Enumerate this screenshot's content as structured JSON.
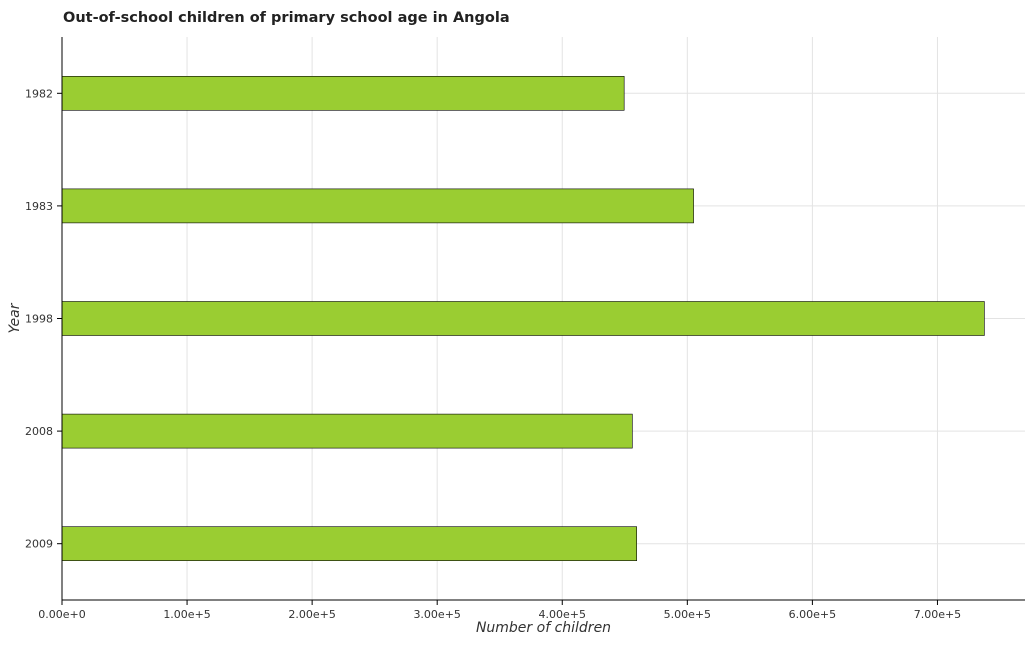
{
  "title": "Out-of-school children of primary school age in Angola",
  "chart_data": {
    "type": "bar",
    "orientation": "horizontal",
    "title": "Out-of-school children of primary school age in Angola",
    "xlabel": "Number of children",
    "ylabel": "Year",
    "categories": [
      "1982",
      "1983",
      "1998",
      "2008",
      "2009"
    ],
    "values": [
      449500,
      505000,
      737500,
      456000,
      459500
    ],
    "xlim": [
      0,
      770000
    ],
    "xticks": [
      0,
      100000,
      200000,
      300000,
      400000,
      500000,
      600000,
      700000
    ],
    "xtick_labels": [
      "0.00e+0",
      "1.00e+5",
      "2.00e+5",
      "3.00e+5",
      "4.00e+5",
      "5.00e+5",
      "6.00e+5",
      "7.00e+5"
    ],
    "grid": true,
    "bar_color": "#9acd32",
    "bar_edge_color": "#000000"
  }
}
